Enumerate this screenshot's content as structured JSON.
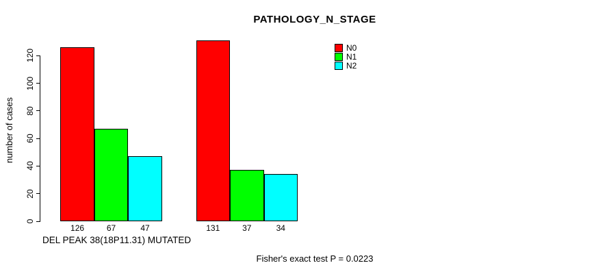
{
  "title": "PATHOLOGY_N_STAGE",
  "chart_data": {
    "type": "bar",
    "title": "PATHOLOGY_N_STAGE",
    "ylabel": "number of cases",
    "xlabel": "DEL PEAK 38(18P11.31) MUTATED",
    "ylim": [
      0,
      130
    ],
    "yticks": [
      0,
      20,
      40,
      60,
      80,
      100,
      120
    ],
    "grid": false,
    "legend_position": "top-right",
    "bar_value_labels_shown": true,
    "groups_count": 2,
    "series": [
      {
        "name": "N0",
        "color": "#ff0000",
        "values": [
          126,
          131
        ]
      },
      {
        "name": "N1",
        "color": "#00ff00",
        "values": [
          67,
          37
        ]
      },
      {
        "name": "N2",
        "color": "#00ffff",
        "values": [
          47,
          34
        ]
      }
    ]
  },
  "legend": {
    "items": [
      {
        "label": "N0",
        "color": "#ff0000"
      },
      {
        "label": "N1",
        "color": "#00ff00"
      },
      {
        "label": "N2",
        "color": "#00ffff"
      }
    ]
  },
  "footer": {
    "stats_text": "Fisher's exact test P = 0.0223"
  }
}
